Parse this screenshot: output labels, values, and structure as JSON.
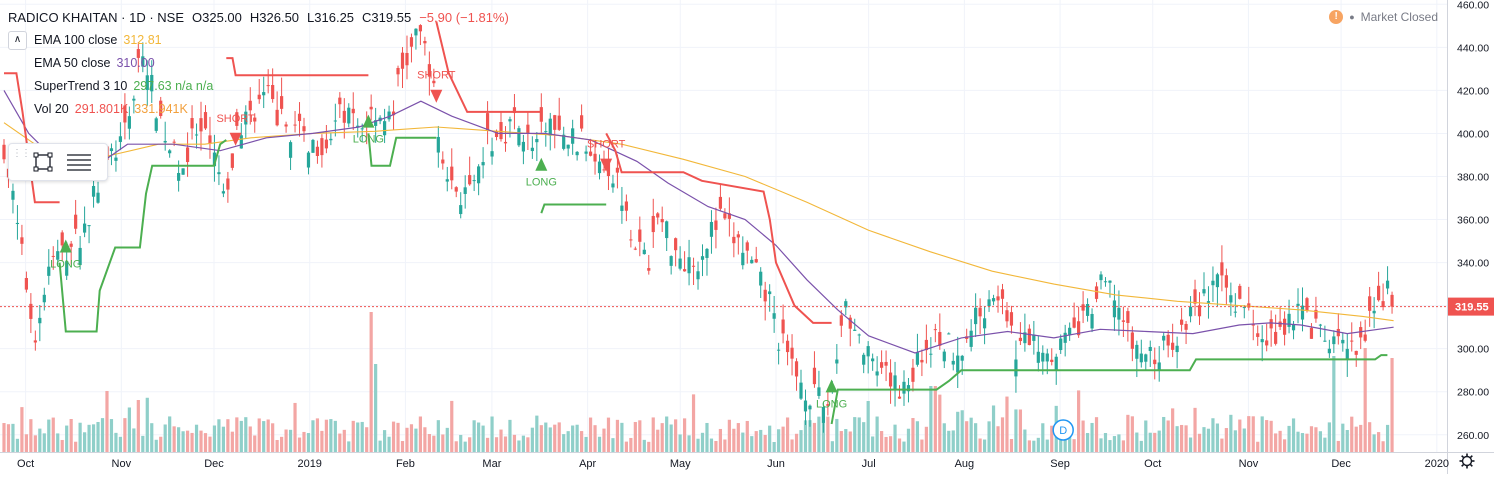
{
  "header": {
    "symbol": "RADICO KHAITAN · 1D · NSE",
    "open": "O325.00",
    "high": "H326.50",
    "low": "L316.25",
    "close": "C319.55",
    "change": "−5.90 (−1.81%)"
  },
  "indicators": [
    {
      "name": "EMA 100 close",
      "value": "312.81",
      "color": "#f2b739"
    },
    {
      "name": "EMA 50 close",
      "value": "310.00",
      "color": "#7b52ab"
    },
    {
      "name": "SuperTrend 3 10",
      "value": "297.63  n/a  n/a",
      "color": "#4caf50"
    },
    {
      "name": "Vol 20",
      "value": "291.801K",
      "value2": "331.941K",
      "color": "#ef5350",
      "color2": "#f2a03d"
    }
  ],
  "market_status": "Market Closed",
  "collapse_glyph": "∧",
  "price_label": "319.55",
  "dividend_marker": "D",
  "colors": {
    "up": "#26a69a",
    "down": "#ef5350",
    "vol_up": "#8fcfc9",
    "vol_down": "#f3a6a4",
    "ema100": "#f2b739",
    "ema50": "#7b52ab",
    "st_up": "#4caf50",
    "st_down": "#ef5350",
    "price_line": "#ef5350"
  },
  "icons": [
    "settings-gear-icon",
    "rectangle-tool-icon",
    "lines-tool-icon",
    "clock-icon"
  ],
  "chart_data": {
    "type": "candlestick",
    "title": "RADICO KHAITAN · 1D · NSE",
    "ylim": [
      252,
      462
    ],
    "y_ticks": [
      260,
      280,
      300,
      320,
      340,
      360,
      380,
      400,
      420,
      440,
      460
    ],
    "x_range_days": [
      0,
      466
    ],
    "x_ticks": [
      {
        "label": "Oct",
        "day": 7
      },
      {
        "label": "Nov",
        "day": 38
      },
      {
        "label": "Dec",
        "day": 68
      },
      {
        "label": "2019",
        "day": 99
      },
      {
        "label": "Feb",
        "day": 130
      },
      {
        "label": "Mar",
        "day": 158
      },
      {
        "label": "Apr",
        "day": 189
      },
      {
        "label": "May",
        "day": 219
      },
      {
        "label": "Jun",
        "day": 250
      },
      {
        "label": "Jul",
        "day": 280
      },
      {
        "label": "Aug",
        "day": 311
      },
      {
        "label": "Sep",
        "day": 342
      },
      {
        "label": "Oct",
        "day": 372
      },
      {
        "label": "Nov",
        "day": 403
      },
      {
        "label": "Dec",
        "day": 433
      },
      {
        "label": "2020",
        "day": 464
      }
    ],
    "close_keys": [
      [
        0,
        395
      ],
      [
        5,
        350
      ],
      [
        10,
        305
      ],
      [
        15,
        340
      ],
      [
        20,
        345
      ],
      [
        26,
        355
      ],
      [
        30,
        375
      ],
      [
        35,
        390
      ],
      [
        40,
        400
      ],
      [
        44,
        440
      ],
      [
        47,
        425
      ],
      [
        50,
        410
      ],
      [
        54,
        392
      ],
      [
        58,
        385
      ],
      [
        62,
        400
      ],
      [
        66,
        395
      ],
      [
        70,
        380
      ],
      [
        72,
        362
      ],
      [
        75,
        400
      ],
      [
        80,
        410
      ],
      [
        85,
        418
      ],
      [
        90,
        405
      ],
      [
        95,
        400
      ],
      [
        100,
        395
      ],
      [
        105,
        398
      ],
      [
        110,
        410
      ],
      [
        115,
        402
      ],
      [
        120,
        412
      ],
      [
        125,
        405
      ],
      [
        128,
        425
      ],
      [
        132,
        440
      ],
      [
        135,
        445
      ],
      [
        138,
        432
      ],
      [
        141,
        395
      ],
      [
        144,
        378
      ],
      [
        148,
        372
      ],
      [
        152,
        370
      ],
      [
        156,
        395
      ],
      [
        160,
        398
      ],
      [
        164,
        405
      ],
      [
        168,
        402
      ],
      [
        172,
        390
      ],
      [
        176,
        408
      ],
      [
        180,
        396
      ],
      [
        184,
        398
      ],
      [
        188,
        395
      ],
      [
        192,
        392
      ],
      [
        196,
        385
      ],
      [
        200,
        374
      ],
      [
        204,
        352
      ],
      [
        208,
        338
      ],
      [
        212,
        362
      ],
      [
        216,
        350
      ],
      [
        220,
        342
      ],
      [
        224,
        340
      ],
      [
        228,
        352
      ],
      [
        232,
        360
      ],
      [
        236,
        352
      ],
      [
        240,
        345
      ],
      [
        244,
        332
      ],
      [
        248,
        322
      ],
      [
        251,
        305
      ],
      [
        254,
        295
      ],
      [
        258,
        285
      ],
      [
        262,
        278
      ],
      [
        266,
        272
      ],
      [
        268,
        280
      ],
      [
        270,
        300
      ],
      [
        272,
        325
      ],
      [
        275,
        310
      ],
      [
        278,
        300
      ],
      [
        282,
        288
      ],
      [
        286,
        285
      ],
      [
        290,
        282
      ],
      [
        294,
        288
      ],
      [
        298,
        300
      ],
      [
        302,
        305
      ],
      [
        306,
        302
      ],
      [
        310,
        300
      ],
      [
        314,
        312
      ],
      [
        318,
        322
      ],
      [
        322,
        328
      ],
      [
        324,
        312
      ],
      [
        328,
        300
      ],
      [
        332,
        305
      ],
      [
        336,
        302
      ],
      [
        340,
        300
      ],
      [
        344,
        303
      ],
      [
        348,
        310
      ],
      [
        352,
        318
      ],
      [
        356,
        330
      ],
      [
        360,
        325
      ],
      [
        364,
        305
      ],
      [
        368,
        298
      ],
      [
        372,
        296
      ],
      [
        376,
        300
      ],
      [
        380,
        306
      ],
      [
        384,
        315
      ],
      [
        388,
        322
      ],
      [
        392,
        330
      ],
      [
        396,
        326
      ],
      [
        400,
        322
      ],
      [
        402,
        318
      ],
      [
        406,
        312
      ],
      [
        410,
        305
      ],
      [
        414,
        310
      ],
      [
        418,
        318
      ],
      [
        422,
        315
      ],
      [
        426,
        305
      ],
      [
        430,
        302
      ],
      [
        434,
        300
      ],
      [
        438,
        298
      ],
      [
        442,
        310
      ],
      [
        446,
        322
      ],
      [
        448,
        326
      ],
      [
        450,
        320
      ]
    ],
    "ema100_keys": [
      [
        0,
        405
      ],
      [
        10,
        395
      ],
      [
        22,
        385
      ],
      [
        35,
        390
      ],
      [
        50,
        395
      ],
      [
        65,
        395
      ],
      [
        80,
        398
      ],
      [
        100,
        400
      ],
      [
        120,
        401
      ],
      [
        140,
        403
      ],
      [
        160,
        401
      ],
      [
        180,
        399
      ],
      [
        200,
        395
      ],
      [
        220,
        388
      ],
      [
        240,
        380
      ],
      [
        260,
        368
      ],
      [
        280,
        355
      ],
      [
        300,
        345
      ],
      [
        320,
        336
      ],
      [
        340,
        330
      ],
      [
        360,
        325
      ],
      [
        380,
        322
      ],
      [
        400,
        320
      ],
      [
        420,
        318
      ],
      [
        440,
        315
      ],
      [
        450,
        313
      ]
    ],
    "ema50_keys": [
      [
        0,
        420
      ],
      [
        8,
        400
      ],
      [
        22,
        380
      ],
      [
        30,
        385
      ],
      [
        40,
        395
      ],
      [
        55,
        395
      ],
      [
        70,
        392
      ],
      [
        85,
        398
      ],
      [
        100,
        400
      ],
      [
        115,
        403
      ],
      [
        125,
        408
      ],
      [
        135,
        415
      ],
      [
        145,
        408
      ],
      [
        160,
        400
      ],
      [
        175,
        400
      ],
      [
        190,
        397
      ],
      [
        205,
        387
      ],
      [
        215,
        377
      ],
      [
        228,
        366
      ],
      [
        240,
        360
      ],
      [
        250,
        348
      ],
      [
        260,
        332
      ],
      [
        270,
        318
      ],
      [
        280,
        306
      ],
      [
        295,
        298
      ],
      [
        310,
        305
      ],
      [
        325,
        308
      ],
      [
        340,
        305
      ],
      [
        355,
        309
      ],
      [
        370,
        308
      ],
      [
        385,
        307
      ],
      [
        400,
        311
      ],
      [
        410,
        312
      ],
      [
        420,
        311
      ],
      [
        435,
        307
      ],
      [
        450,
        310
      ]
    ],
    "supertrend": [
      {
        "trend": "down",
        "points": [
          [
            0,
            428
          ],
          [
            4,
            428
          ],
          [
            6,
            410
          ],
          [
            10,
            368
          ],
          [
            18,
            368
          ]
        ]
      },
      {
        "trend": "up",
        "points": [
          [
            18,
            340
          ],
          [
            20,
            308
          ],
          [
            30,
            308
          ],
          [
            31,
            327
          ],
          [
            36,
            347
          ],
          [
            44,
            347
          ],
          [
            46,
            372
          ],
          [
            48,
            385
          ],
          [
            68,
            385
          ],
          [
            70,
            395
          ],
          [
            72,
            397
          ]
        ]
      },
      {
        "trend": "down",
        "points": [
          [
            72,
            435
          ],
          [
            74,
            435
          ],
          [
            75,
            427
          ],
          [
            112,
            427
          ],
          [
            118,
            427
          ]
        ]
      },
      {
        "trend": "up",
        "points": [
          [
            118,
            400
          ],
          [
            119,
            385
          ],
          [
            125,
            385
          ],
          [
            127,
            398
          ],
          [
            140,
            398
          ]
        ]
      },
      {
        "trend": "down",
        "points": [
          [
            140,
            452
          ],
          [
            144,
            428
          ],
          [
            150,
            410
          ],
          [
            172,
            410
          ],
          [
            174,
            410
          ]
        ]
      },
      {
        "trend": "up",
        "points": [
          [
            174,
            363
          ],
          [
            175,
            367
          ],
          [
            195,
            367
          ]
        ]
      },
      {
        "trend": "down",
        "points": [
          [
            195,
            400
          ],
          [
            198,
            392
          ],
          [
            200,
            382
          ],
          [
            220,
            382
          ],
          [
            226,
            378
          ],
          [
            246,
            373
          ],
          [
            248,
            360
          ],
          [
            250,
            340
          ],
          [
            256,
            320
          ],
          [
            262,
            312
          ],
          [
            268,
            312
          ]
        ]
      },
      {
        "trend": "up",
        "points": [
          [
            268,
            265
          ],
          [
            270,
            281
          ],
          [
            302,
            281
          ],
          [
            306,
            285
          ],
          [
            310,
            290
          ],
          [
            370,
            290
          ],
          [
            384,
            290
          ],
          [
            386,
            295
          ],
          [
            444,
            295
          ],
          [
            446,
            297
          ],
          [
            448,
            297
          ]
        ]
      }
    ],
    "signals": [
      {
        "label": "LONG",
        "type": "long",
        "day": 20,
        "price": 347
      },
      {
        "label": "SHORT",
        "type": "short",
        "day": 75,
        "price": 398
      },
      {
        "label": "LONG",
        "type": "long",
        "day": 118,
        "price": 405
      },
      {
        "label": "SHORT",
        "type": "short",
        "day": 140,
        "price": 418
      },
      {
        "label": "LONG",
        "type": "long",
        "day": 174,
        "price": 385
      },
      {
        "label": "SHORT",
        "type": "short",
        "day": 195,
        "price": 386
      },
      {
        "label": "LONG",
        "type": "long",
        "day": 268,
        "price": 282
      }
    ],
    "volume_spikes": [
      [
        44,
        260000
      ],
      [
        119,
        700000
      ],
      [
        120,
        440000
      ],
      [
        300,
        330000
      ],
      [
        301,
        330000
      ],
      [
        430,
        480000
      ],
      [
        441,
        520000
      ],
      [
        455,
        470000
      ]
    ]
  }
}
